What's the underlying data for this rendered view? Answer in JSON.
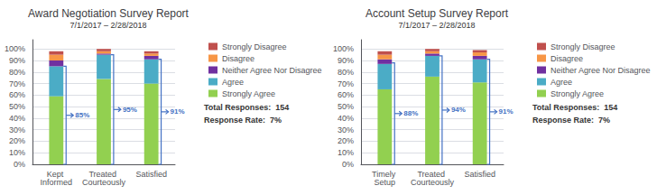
{
  "chart_data": [
    {
      "type": "bar",
      "title": "Award Negotiation Survey Report",
      "subtitle": "7/1/2017 – 2/28/2018",
      "categories": [
        "Kept Informed",
        "Treated Courteously",
        "Satisfied"
      ],
      "series": [
        {
          "name": "Strongly Agree",
          "color": "#92d050",
          "values": [
            59,
            74,
            70
          ]
        },
        {
          "name": "Agree",
          "color": "#4bacc6",
          "values": [
            26,
            21,
            21
          ]
        },
        {
          "name": "Neither Agree Nor Disagree",
          "color": "#7030a0",
          "values": [
            5,
            1,
            3
          ]
        },
        {
          "name": "Disagree",
          "color": "#f79646",
          "values": [
            5,
            2,
            2
          ]
        },
        {
          "name": "Strongly Disagree",
          "color": "#c0504d",
          "values": [
            3,
            2,
            2
          ]
        }
      ],
      "stacked": true,
      "ylim": [
        0,
        108
      ],
      "yticks": [
        {
          "value": 0,
          "label": "0%"
        },
        {
          "value": 10,
          "label": "10%"
        },
        {
          "value": 20,
          "label": "20%"
        },
        {
          "value": 30,
          "label": "30%"
        },
        {
          "value": 40,
          "label": "40%"
        },
        {
          "value": 50,
          "label": "50%"
        },
        {
          "value": 60,
          "label": "60%"
        },
        {
          "value": 70,
          "label": "70%"
        },
        {
          "value": 80,
          "label": "80%"
        },
        {
          "value": 90,
          "label": "90%"
        },
        {
          "value": 100,
          "label": "100%"
        }
      ],
      "grid": true,
      "legend": "right",
      "brackets": {
        "color": "#4472c4",
        "values": [
          85,
          95,
          91
        ],
        "labels": [
          "85%",
          "95%",
          "91%"
        ]
      },
      "notes": [
        "Total Responses:  154",
        "Response Rate:  7%"
      ]
    },
    {
      "type": "bar",
      "title": "Account Setup Survey Report",
      "subtitle": "7/1/2017 – 2/28/2018",
      "categories": [
        "Timely Setup",
        "Treated Courteously",
        "Satisfied"
      ],
      "series": [
        {
          "name": "Strongly Agree",
          "color": "#92d050",
          "values": [
            65,
            76,
            71
          ]
        },
        {
          "name": "Agree",
          "color": "#4bacc6",
          "values": [
            22,
            18,
            20
          ]
        },
        {
          "name": "Neither Agree Nor Disagree",
          "color": "#7030a0",
          "values": [
            4,
            2,
            3
          ]
        },
        {
          "name": "Disagree",
          "color": "#f79646",
          "values": [
            4,
            2,
            3
          ]
        },
        {
          "name": "Strongly Disagree",
          "color": "#c0504d",
          "values": [
            3,
            2,
            2
          ]
        }
      ],
      "stacked": true,
      "ylim": [
        0,
        108
      ],
      "yticks": [
        {
          "value": 0,
          "label": "0%"
        },
        {
          "value": 10,
          "label": "10%"
        },
        {
          "value": 20,
          "label": "20%"
        },
        {
          "value": 30,
          "label": "30%"
        },
        {
          "value": 40,
          "label": "40%"
        },
        {
          "value": 50,
          "label": "50%"
        },
        {
          "value": 60,
          "label": "60%"
        },
        {
          "value": 70,
          "label": "70%"
        },
        {
          "value": 80,
          "label": "80%"
        },
        {
          "value": 90,
          "label": "90%"
        },
        {
          "value": 100,
          "label": "100%"
        }
      ],
      "grid": true,
      "legend": "right",
      "brackets": {
        "color": "#4472c4",
        "values": [
          88,
          94,
          91
        ],
        "labels": [
          "88%",
          "94%",
          "91%"
        ]
      },
      "notes": [
        "Total Responses:  154",
        "Response Rate:  7%"
      ]
    }
  ]
}
